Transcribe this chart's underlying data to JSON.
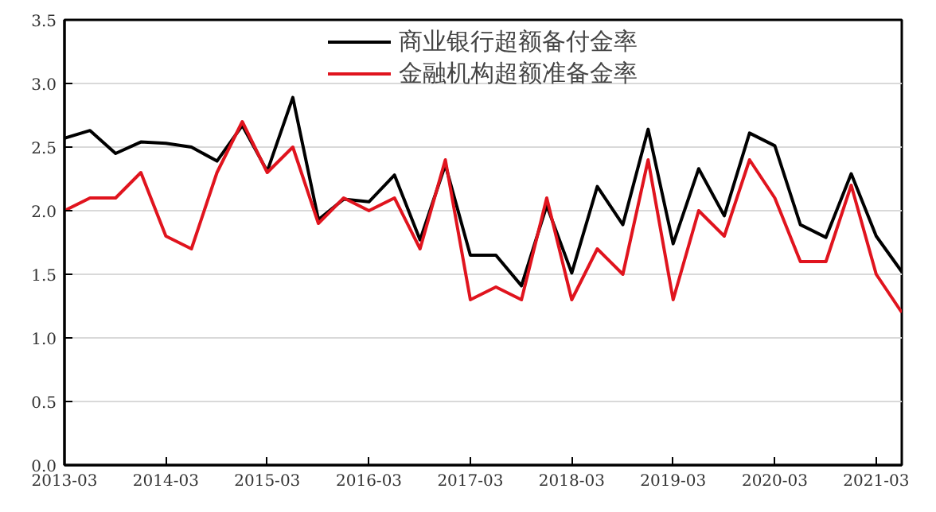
{
  "chart_data": {
    "type": "line",
    "x": [
      "2013-03",
      "2013-06",
      "2013-09",
      "2013-12",
      "2014-03",
      "2014-06",
      "2014-09",
      "2014-12",
      "2015-03",
      "2015-06",
      "2015-09",
      "2015-12",
      "2016-03",
      "2016-06",
      "2016-09",
      "2016-12",
      "2017-03",
      "2017-06",
      "2017-09",
      "2017-12",
      "2018-03",
      "2018-06",
      "2018-09",
      "2018-12",
      "2019-03",
      "2019-06",
      "2019-09",
      "2019-12",
      "2020-03",
      "2020-06",
      "2020-09",
      "2020-12",
      "2021-03",
      "2021-06"
    ],
    "series": [
      {
        "name": "商业银行超额备付金率",
        "color": "#000000",
        "values": [
          2.57,
          2.63,
          2.45,
          2.54,
          2.53,
          2.5,
          2.39,
          2.67,
          2.31,
          2.89,
          1.93,
          2.09,
          2.07,
          2.28,
          1.77,
          2.36,
          1.65,
          1.65,
          1.41,
          2.04,
          1.51,
          2.19,
          1.89,
          2.64,
          1.74,
          2.33,
          1.96,
          2.61,
          2.51,
          1.89,
          1.79,
          2.29,
          1.8,
          1.52
        ]
      },
      {
        "name": "金融机构超额准备金率",
        "color": "#e0141e",
        "values": [
          2.0,
          2.1,
          2.1,
          2.3,
          1.8,
          1.7,
          2.3,
          2.7,
          2.3,
          2.5,
          1.9,
          2.1,
          2.0,
          2.1,
          1.7,
          2.4,
          1.3,
          1.4,
          1.3,
          2.1,
          1.3,
          1.7,
          1.5,
          2.4,
          1.3,
          2.0,
          1.8,
          2.4,
          2.1,
          1.6,
          1.6,
          2.2,
          1.5,
          1.2
        ]
      }
    ],
    "xlim": [
      "2013-03",
      "2021-06"
    ],
    "xticks": [
      "2013-03",
      "2014-03",
      "2015-03",
      "2016-03",
      "2017-03",
      "2018-03",
      "2019-03",
      "2020-03",
      "2021-03"
    ],
    "ylim": [
      0,
      3.5
    ],
    "yticks": [
      {
        "value": 0,
        "label": "0.0"
      },
      {
        "value": 0.5,
        "label": "0.5"
      },
      {
        "value": 1,
        "label": "1.0"
      },
      {
        "value": 1.5,
        "label": "1.5"
      },
      {
        "value": 2,
        "label": "2.0"
      },
      {
        "value": 2.5,
        "label": "2.5"
      },
      {
        "value": 3,
        "label": "3.0"
      },
      {
        "value": 3.5,
        "label": "3.5"
      }
    ],
    "grid": "y",
    "legend": "top",
    "marker": "none",
    "line_style": "solid"
  }
}
